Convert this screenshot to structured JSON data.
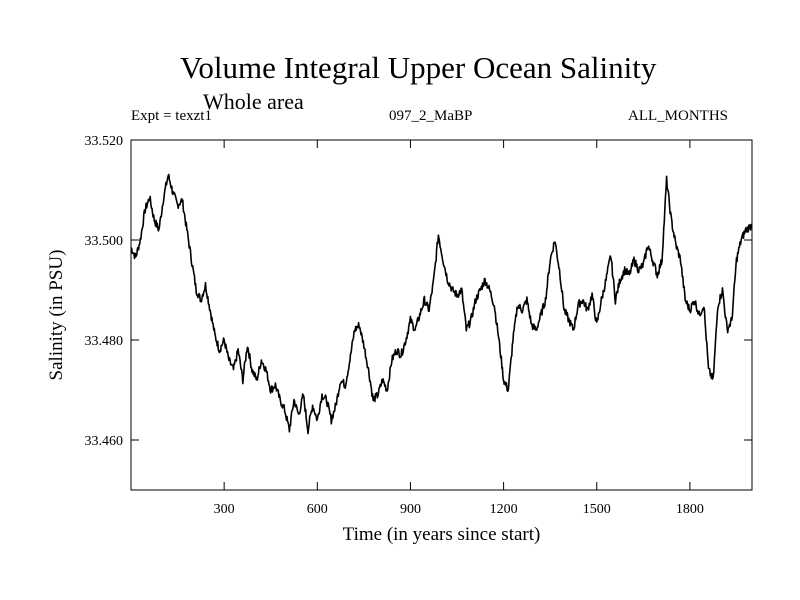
{
  "header": {
    "title": "Volume Integral Upper Ocean Salinity",
    "subtitle": "Whole area",
    "experiment": "Expt = texzt1",
    "run_id": "097_2_MaBP",
    "months": "ALL_MONTHS"
  },
  "colors": {
    "line": "#000000",
    "frame": "#000000",
    "background": "#ffffff"
  },
  "chart_data": {
    "type": "line",
    "title": "Volume Integral Upper Ocean Salinity",
    "xlabel": "Time (in years since start)",
    "ylabel": "Salinity (in PSU)",
    "xlim": [
      0,
      2000
    ],
    "ylim": [
      33.45,
      33.52
    ],
    "x_ticks": [
      300,
      600,
      900,
      1200,
      1500,
      1800
    ],
    "x_tick_labels": [
      "300",
      "600",
      "900",
      "1200",
      "1500",
      "1800"
    ],
    "y_ticks": [
      33.46,
      33.48,
      33.5,
      33.52
    ],
    "y_tick_labels": [
      "33.460",
      "33.480",
      "33.500",
      "33.520"
    ],
    "grid": false,
    "series": [
      {
        "name": "Salinity",
        "x": [
          0,
          15,
          30,
          45,
          60,
          75,
          90,
          105,
          120,
          135,
          150,
          165,
          180,
          195,
          210,
          225,
          240,
          255,
          270,
          285,
          300,
          315,
          330,
          345,
          360,
          375,
          390,
          405,
          420,
          435,
          450,
          465,
          480,
          495,
          510,
          525,
          540,
          555,
          570,
          585,
          600,
          615,
          630,
          645,
          660,
          675,
          690,
          705,
          720,
          735,
          750,
          765,
          780,
          795,
          810,
          825,
          840,
          855,
          870,
          885,
          900,
          915,
          930,
          945,
          960,
          975,
          990,
          1005,
          1020,
          1035,
          1050,
          1065,
          1080,
          1095,
          1110,
          1125,
          1140,
          1155,
          1170,
          1185,
          1200,
          1215,
          1230,
          1245,
          1260,
          1275,
          1290,
          1305,
          1320,
          1335,
          1350,
          1365,
          1380,
          1395,
          1410,
          1425,
          1440,
          1455,
          1470,
          1485,
          1500,
          1515,
          1530,
          1545,
          1560,
          1575,
          1590,
          1605,
          1620,
          1635,
          1650,
          1665,
          1680,
          1695,
          1710,
          1725,
          1740,
          1755,
          1770,
          1785,
          1800,
          1815,
          1830,
          1845,
          1860,
          1875,
          1890,
          1905,
          1920,
          1935,
          1950,
          1965,
          1980,
          2000
        ],
        "values": [
          33.4985,
          33.4965,
          33.5,
          33.506,
          33.5085,
          33.504,
          33.502,
          33.5085,
          33.513,
          33.5095,
          33.507,
          33.508,
          33.502,
          33.496,
          33.49,
          33.488,
          33.491,
          33.486,
          33.481,
          33.478,
          33.48,
          33.476,
          33.474,
          33.478,
          33.472,
          33.479,
          33.474,
          33.472,
          33.476,
          33.474,
          33.47,
          33.471,
          33.468,
          33.466,
          33.462,
          33.468,
          33.465,
          33.469,
          33.462,
          33.467,
          33.464,
          33.469,
          33.468,
          33.464,
          33.467,
          33.472,
          33.471,
          33.476,
          33.482,
          33.483,
          33.479,
          33.474,
          33.468,
          33.469,
          33.472,
          33.47,
          33.476,
          33.478,
          33.477,
          33.48,
          33.484,
          33.482,
          33.485,
          33.488,
          33.486,
          33.492,
          33.501,
          33.496,
          33.492,
          33.49,
          33.489,
          33.49,
          33.482,
          33.484,
          33.488,
          33.49,
          33.492,
          33.49,
          33.487,
          33.48,
          33.472,
          33.47,
          33.48,
          33.487,
          33.486,
          33.488,
          33.483,
          33.482,
          33.485,
          33.488,
          33.496,
          33.5,
          33.494,
          33.486,
          33.484,
          33.482,
          33.487,
          33.488,
          33.486,
          33.489,
          33.483,
          33.488,
          33.492,
          33.497,
          33.488,
          33.492,
          33.494,
          33.493,
          33.496,
          33.494,
          33.495,
          33.499,
          33.496,
          33.493,
          33.496,
          33.512,
          33.504,
          33.499,
          33.496,
          33.488,
          33.486,
          33.488,
          33.485,
          33.487,
          33.474,
          33.472,
          33.487,
          33.49,
          33.482,
          33.484,
          33.496,
          33.5,
          33.502,
          33.503
        ]
      }
    ]
  }
}
